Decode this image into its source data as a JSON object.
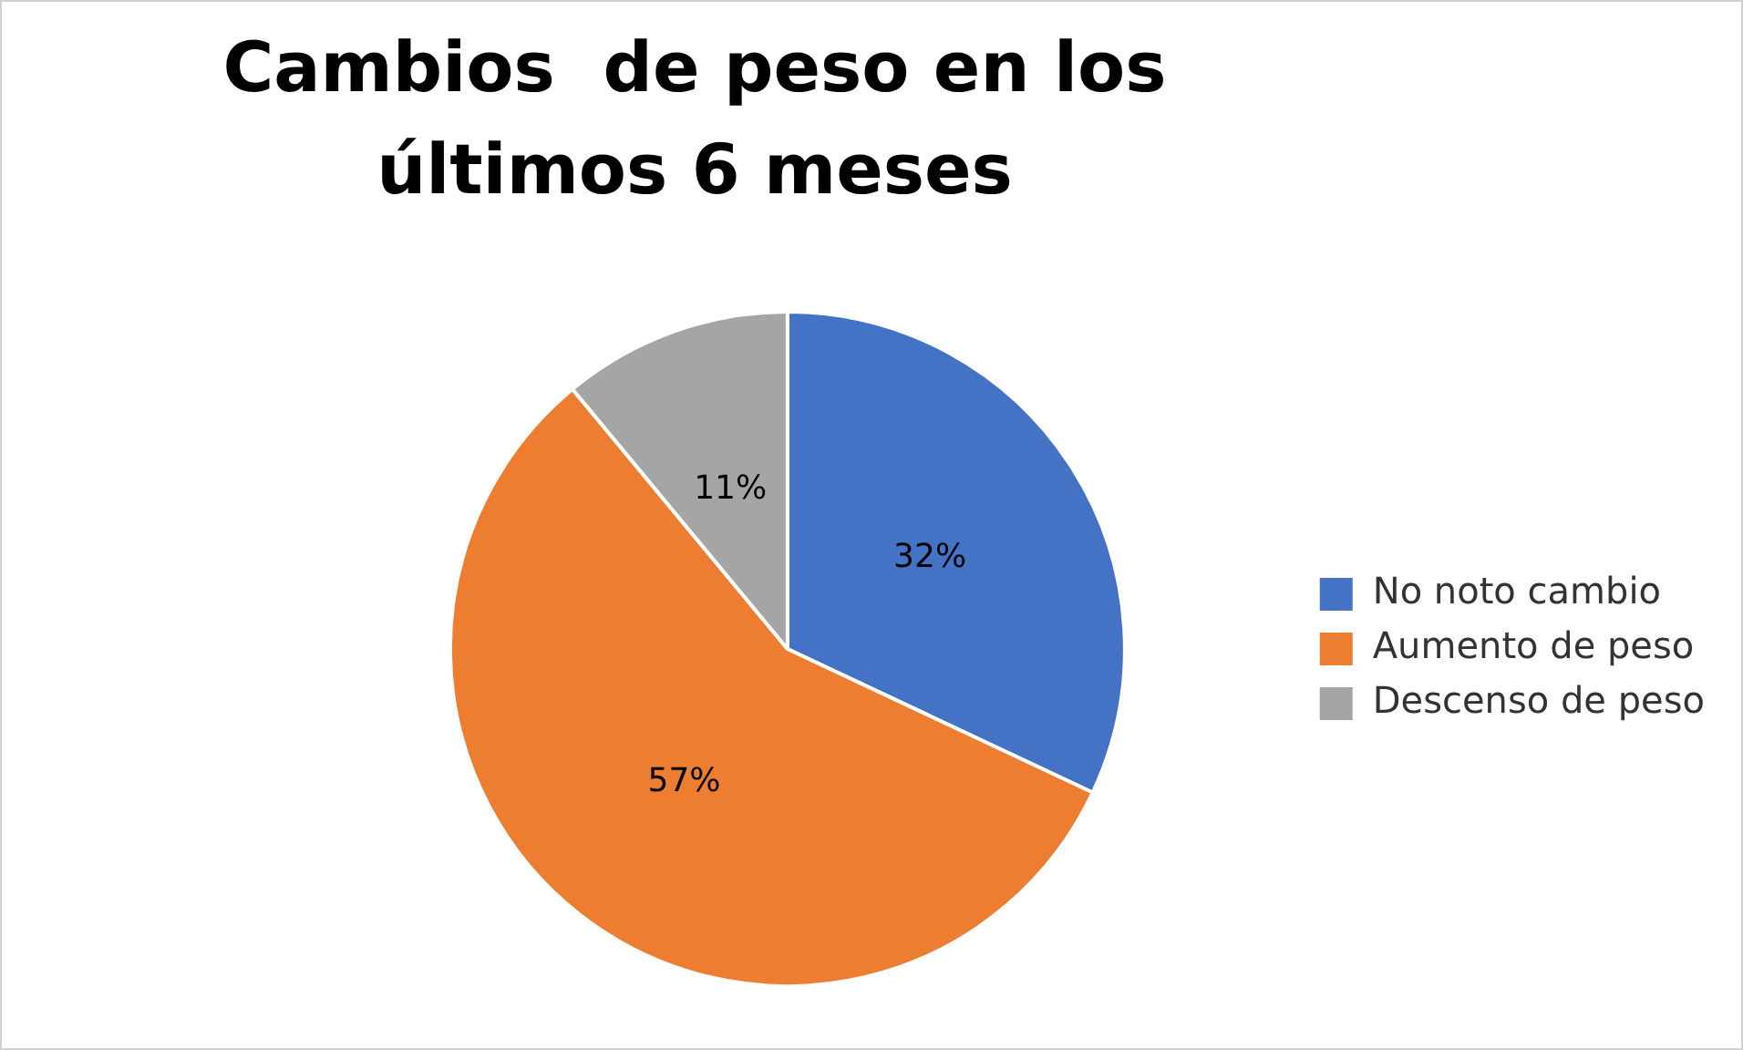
{
  "chart_data": {
    "type": "pie",
    "title": "Cambios  de peso en los últimos 6 meses",
    "categories": [
      "No noto cambio",
      "Aumento de peso",
      "Descenso de peso"
    ],
    "values": [
      32,
      57,
      11
    ],
    "value_labels": [
      "32%",
      "57%",
      "11%"
    ],
    "colors": [
      "#4472c4",
      "#ed7d31",
      "#a5a5a5"
    ],
    "legend": "right"
  }
}
